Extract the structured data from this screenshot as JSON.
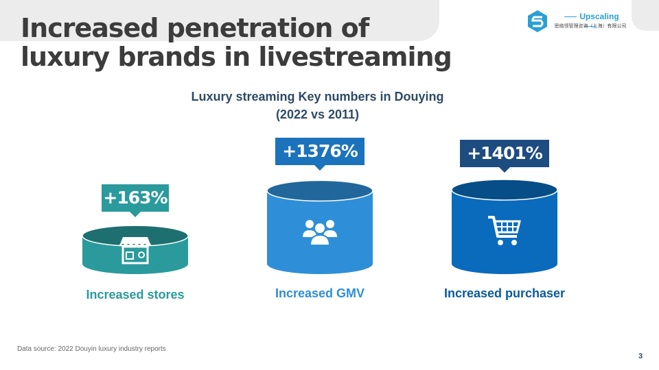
{
  "title": {
    "line1": "Increased penetration of",
    "line2": "luxury brands in livestreaming"
  },
  "logo": {
    "name": "Upscaling",
    "subtitle": "思络领管理咨询（上海）有限公司"
  },
  "chart_title": {
    "line1": "Luxury streaming Key numbers in Douying",
    "line2": "(2022 vs 2011)"
  },
  "chart_data": {
    "type": "bar",
    "categories": [
      "Increased stores",
      "Increased GMV",
      "Increased purchaser"
    ],
    "values": [
      163,
      1376,
      1401
    ],
    "value_labels": [
      "+163%",
      "+1376%",
      "+1401%"
    ],
    "unit": "%",
    "colors": [
      "#2a9a9c",
      "#2e8fd8",
      "#0a6bbd"
    ],
    "label_colors": [
      "#2a9a9c",
      "#2e8fd8",
      "#0a5a9c"
    ],
    "callout_colors": [
      "#2a9a9c",
      "#1b73bb",
      "#1d4c80"
    ],
    "icons": [
      "storefront-icon",
      "people-icon",
      "shopping-cart-icon"
    ]
  },
  "source": "Data  source: 2022 Douyin luxury industry reports",
  "page_number": "3"
}
